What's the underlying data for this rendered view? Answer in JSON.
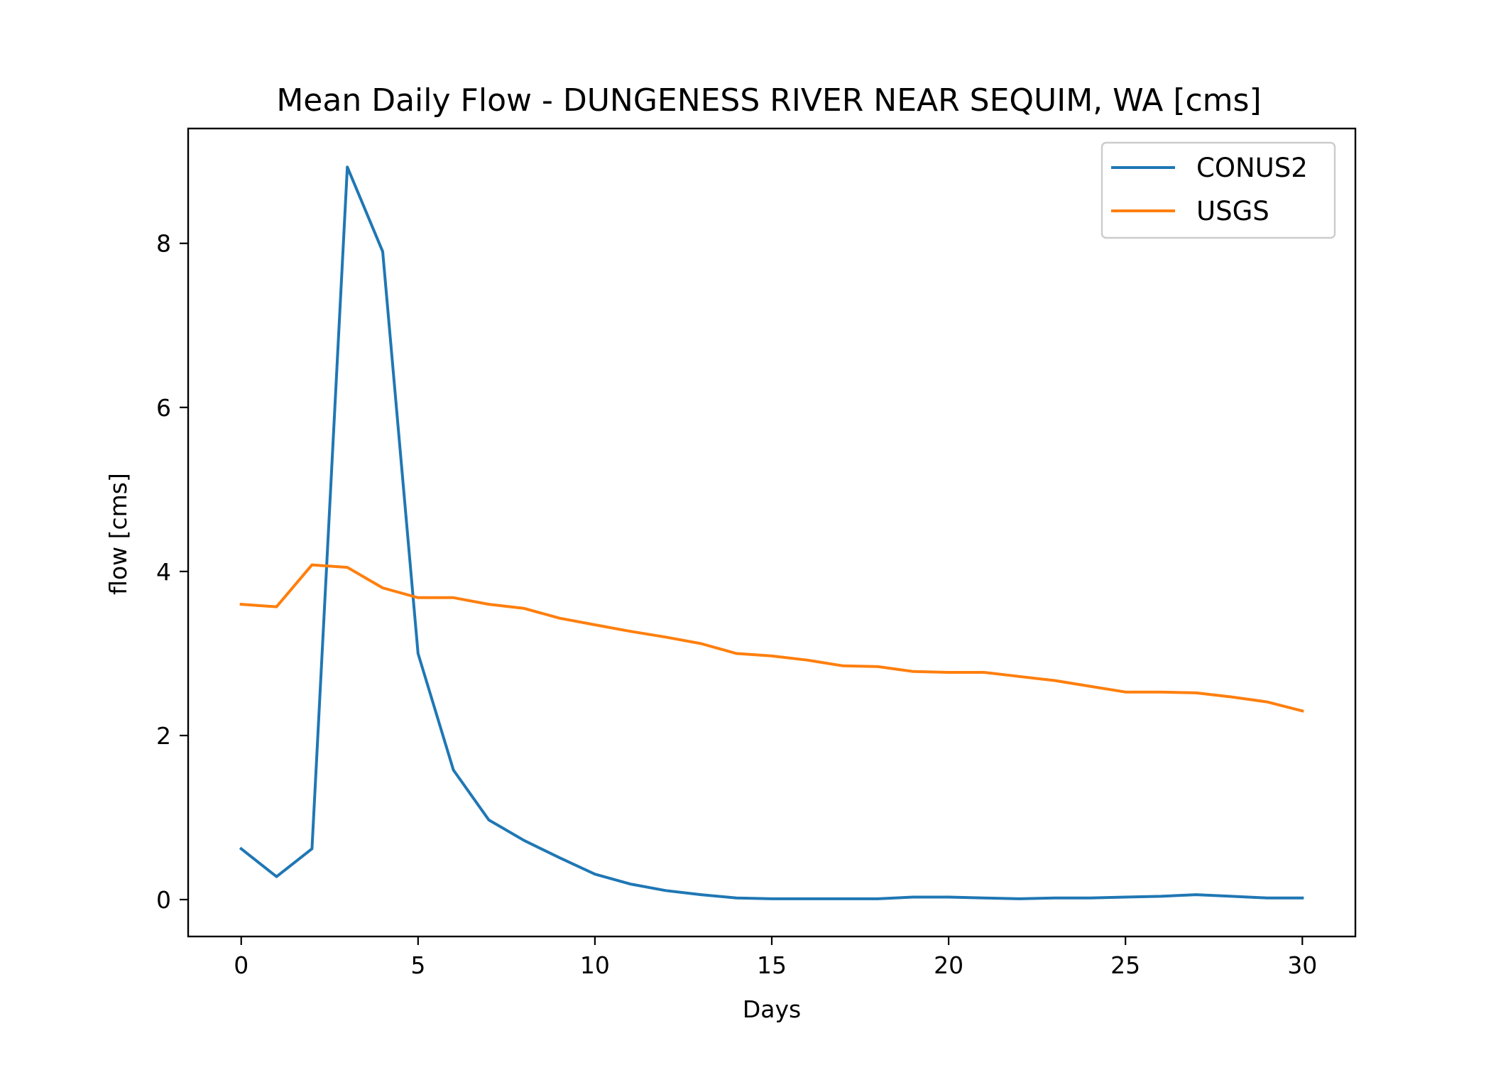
{
  "chart_data": {
    "type": "line",
    "title": "Mean Daily Flow - DUNGENESS RIVER NEAR SEQUIM, WA [cms]",
    "xlabel": "Days",
    "ylabel": "flow [cms]",
    "xlim": [
      -1.5,
      31.5
    ],
    "ylim": [
      -0.45,
      9.4
    ],
    "xticks": [
      0,
      5,
      10,
      15,
      20,
      25,
      30
    ],
    "yticks": [
      0,
      2,
      4,
      6,
      8
    ],
    "grid": false,
    "legend_position": "upper right",
    "x": [
      0,
      1,
      2,
      3,
      4,
      5,
      6,
      7,
      8,
      9,
      10,
      11,
      12,
      13,
      14,
      15,
      16,
      17,
      18,
      19,
      20,
      21,
      22,
      23,
      24,
      25,
      26,
      27,
      28,
      29,
      30
    ],
    "series": [
      {
        "name": "CONUS2",
        "color": "#1f77b4",
        "values": [
          0.62,
          0.28,
          0.62,
          8.93,
          7.9,
          3.0,
          1.58,
          0.97,
          0.72,
          0.51,
          0.31,
          0.19,
          0.11,
          0.06,
          0.02,
          0.01,
          0.01,
          0.01,
          0.01,
          0.03,
          0.03,
          0.02,
          0.01,
          0.02,
          0.02,
          0.03,
          0.04,
          0.06,
          0.04,
          0.02,
          0.02
        ]
      },
      {
        "name": "USGS",
        "color": "#ff7f0e",
        "values": [
          3.6,
          3.57,
          4.08,
          4.05,
          3.8,
          3.68,
          3.68,
          3.6,
          3.55,
          3.43,
          3.35,
          3.27,
          3.2,
          3.12,
          3.0,
          2.97,
          2.92,
          2.85,
          2.84,
          2.78,
          2.77,
          2.77,
          2.72,
          2.67,
          2.6,
          2.53,
          2.53,
          2.52,
          2.47,
          2.41,
          2.3
        ]
      }
    ]
  }
}
